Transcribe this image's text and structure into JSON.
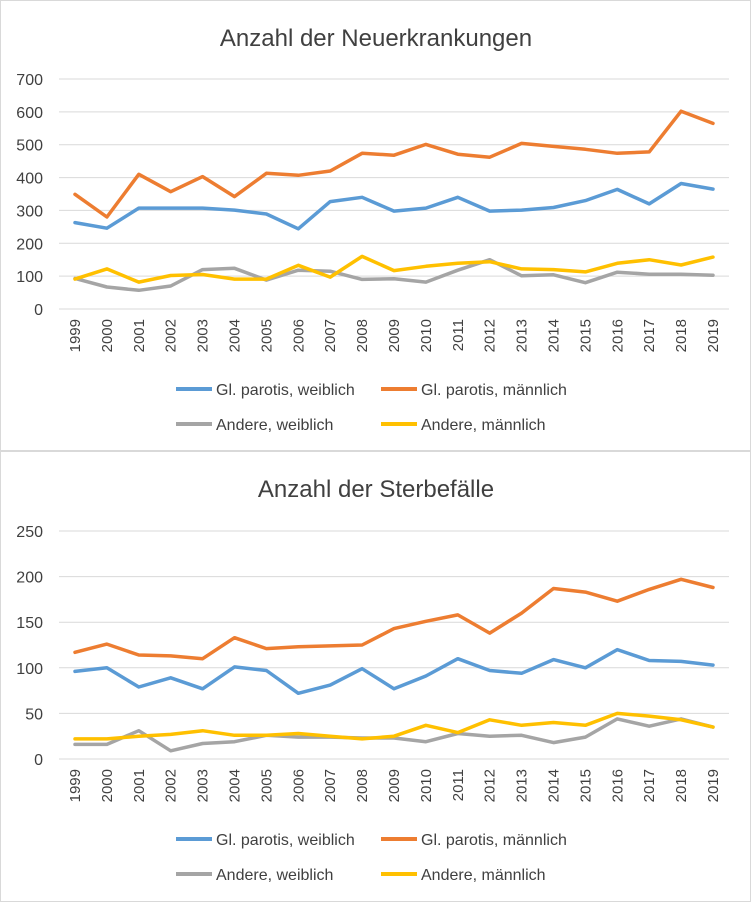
{
  "colors": {
    "gl_weiblich": "#5B9BD5",
    "gl_maennlich": "#ED7D31",
    "andere_weiblich": "#A5A5A5",
    "andere_maennlich": "#FFC000",
    "grid": "#d9d9d9",
    "text": "#404040"
  },
  "chart_data": [
    {
      "type": "line",
      "title": "Anzahl der Neuerkrankungen",
      "xlabel": "",
      "ylabel": "",
      "ylim": [
        0,
        700
      ],
      "yticks": [
        0,
        100,
        200,
        300,
        400,
        500,
        600,
        700
      ],
      "categories": [
        "1999",
        "2000",
        "2001",
        "2002",
        "2003",
        "2004",
        "2005",
        "2006",
        "2007",
        "2008",
        "2009",
        "2010",
        "2011",
        "2012",
        "2013",
        "2014",
        "2015",
        "2016",
        "2017",
        "2018",
        "2019"
      ],
      "legend_position": "bottom",
      "series": [
        {
          "name": "Gl. parotis, weiblich",
          "color_key": "gl_weiblich",
          "values": [
            263,
            246,
            307,
            307,
            307,
            301,
            289,
            244,
            327,
            340,
            298,
            307,
            340,
            298,
            301,
            309,
            330,
            364,
            320,
            382,
            365
          ]
        },
        {
          "name": "Gl. parotis, männlich",
          "color_key": "gl_maennlich",
          "values": [
            349,
            280,
            410,
            357,
            403,
            342,
            413,
            407,
            420,
            474,
            468,
            501,
            471,
            462,
            504,
            495,
            486,
            474,
            478,
            602,
            565
          ]
        },
        {
          "name": "Andere, weiblich",
          "color_key": "andere_weiblich",
          "values": [
            93,
            67,
            57,
            70,
            120,
            124,
            88,
            118,
            115,
            90,
            92,
            82,
            118,
            150,
            101,
            104,
            80,
            112,
            106,
            106,
            103
          ]
        },
        {
          "name": "Andere, männlich",
          "color_key": "andere_maennlich",
          "values": [
            91,
            122,
            82,
            102,
            105,
            91,
            91,
            133,
            97,
            160,
            117,
            130,
            139,
            144,
            122,
            120,
            113,
            139,
            150,
            134,
            158
          ]
        }
      ]
    },
    {
      "type": "line",
      "title": "Anzahl der Sterbefälle",
      "xlabel": "",
      "ylabel": "",
      "ylim": [
        0,
        250
      ],
      "yticks": [
        0,
        50,
        100,
        150,
        200,
        250
      ],
      "categories": [
        "1999",
        "2000",
        "2001",
        "2002",
        "2003",
        "2004",
        "2005",
        "2006",
        "2007",
        "2008",
        "2009",
        "2010",
        "2011",
        "2012",
        "2013",
        "2014",
        "2015",
        "2016",
        "2017",
        "2018",
        "2019"
      ],
      "legend_position": "bottom",
      "series": [
        {
          "name": "Gl. parotis, weiblich",
          "color_key": "gl_weiblich",
          "values": [
            96,
            100,
            79,
            89,
            77,
            101,
            97,
            72,
            81,
            99,
            77,
            91,
            110,
            97,
            94,
            109,
            100,
            120,
            108,
            107,
            103
          ]
        },
        {
          "name": "Gl. parotis, männlich",
          "color_key": "gl_maennlich",
          "values": [
            117,
            126,
            114,
            113,
            110,
            133,
            121,
            123,
            124,
            125,
            143,
            151,
            158,
            138,
            160,
            187,
            183,
            173,
            186,
            197,
            188
          ]
        },
        {
          "name": "Andere, weiblich",
          "color_key": "andere_weiblich",
          "values": [
            16,
            16,
            31,
            9,
            17,
            19,
            26,
            24,
            24,
            23,
            23,
            19,
            28,
            25,
            26,
            18,
            24,
            44,
            36,
            44,
            35
          ]
        },
        {
          "name": "Andere, männlich",
          "color_key": "andere_maennlich",
          "values": [
            22,
            22,
            25,
            27,
            31,
            26,
            26,
            28,
            25,
            22,
            25,
            37,
            29,
            43,
            37,
            40,
            37,
            50,
            47,
            43,
            35
          ]
        }
      ]
    }
  ]
}
